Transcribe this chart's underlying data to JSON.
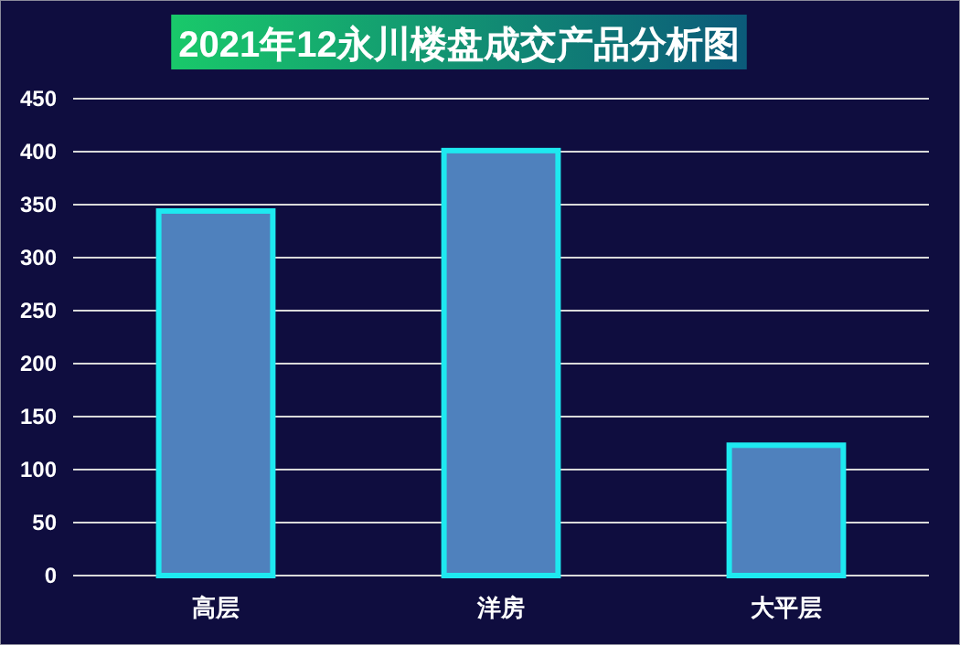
{
  "chart_data": {
    "type": "bar",
    "title": "2021年12永川楼盘成交产品分析图",
    "categories": [
      "高层",
      "洋房",
      "大平层"
    ],
    "series": [
      {
        "color": "#4f81bd",
        "values": [
          344,
          401,
          123
        ]
      }
    ],
    "ylim": [
      0,
      450
    ],
    "yticks": [
      0,
      50,
      100,
      150,
      200,
      250,
      300,
      350,
      400,
      450
    ],
    "grid": "y"
  }
}
